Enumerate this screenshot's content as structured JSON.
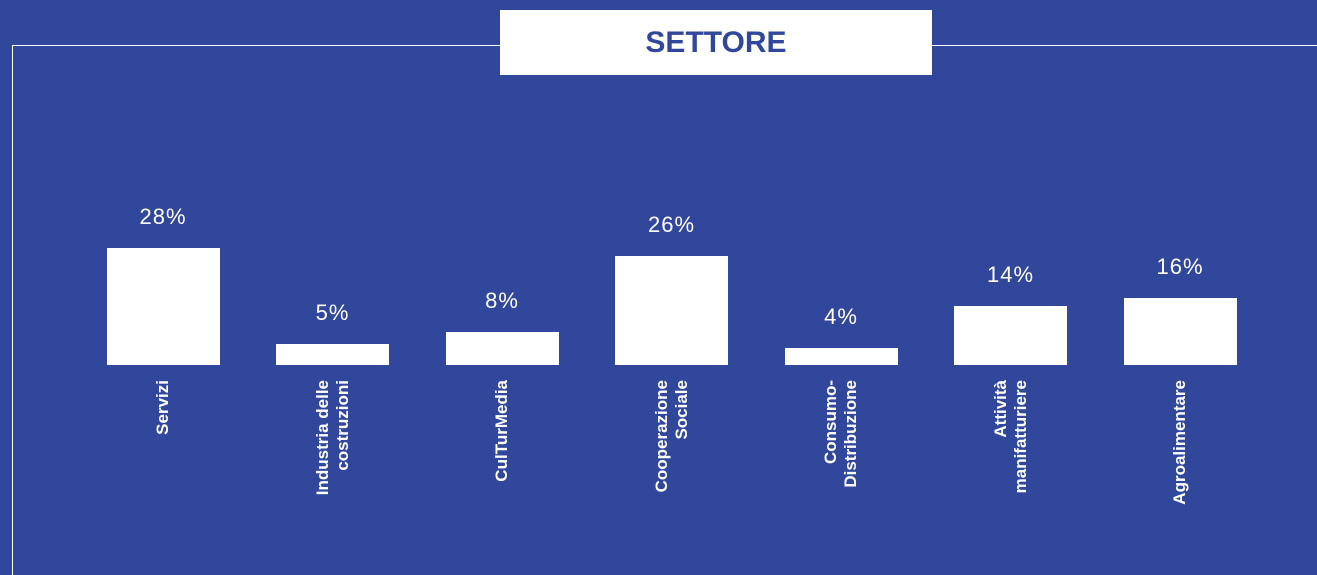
{
  "chart_data": {
    "type": "bar",
    "title": "SETTORE",
    "categories": [
      "Servizi",
      "Industria delle\ncostruzioni",
      "CulTurMedia",
      "Cooperazione\nSociale",
      "Consumo-\nDistribuzione",
      "Attività\nmanifatturiere",
      "Agroalimentare"
    ],
    "values": [
      28,
      5,
      8,
      26,
      4,
      14,
      16
    ],
    "value_labels": [
      "28%",
      "5%",
      "8%",
      "26%",
      "4%",
      "14%",
      "16%"
    ],
    "color": "#ffffff",
    "background": "#31479b"
  }
}
